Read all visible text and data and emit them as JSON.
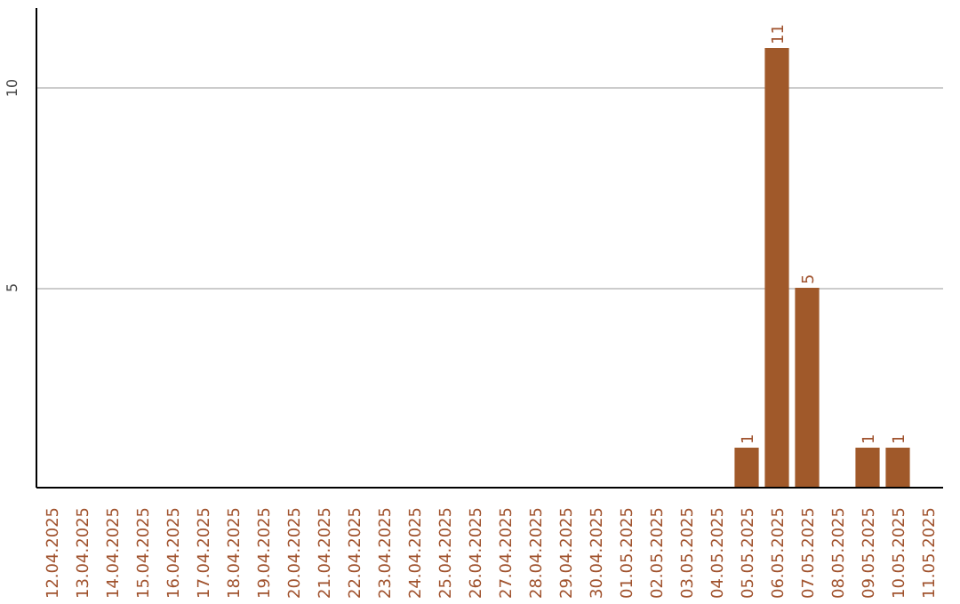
{
  "chart_data": {
    "type": "bar",
    "categories": [
      "12.04.2025",
      "13.04.2025",
      "14.04.2025",
      "15.04.2025",
      "16.04.2025",
      "17.04.2025",
      "18.04.2025",
      "19.04.2025",
      "20.04.2025",
      "21.04.2025",
      "22.04.2025",
      "23.04.2025",
      "24.04.2025",
      "25.04.2025",
      "26.04.2025",
      "27.04.2025",
      "28.04.2025",
      "29.04.2025",
      "30.04.2025",
      "01.05.2025",
      "02.05.2025",
      "03.05.2025",
      "04.05.2025",
      "05.05.2025",
      "06.05.2025",
      "07.05.2025",
      "08.05.2025",
      "09.05.2025",
      "10.05.2025",
      "11.05.2025"
    ],
    "values": [
      0,
      0,
      0,
      0,
      0,
      0,
      0,
      0,
      0,
      0,
      0,
      0,
      0,
      0,
      0,
      0,
      0,
      0,
      0,
      0,
      0,
      0,
      0,
      1,
      11,
      5,
      0,
      1,
      1,
      0
    ],
    "value_labels": [
      null,
      null,
      null,
      null,
      null,
      null,
      null,
      null,
      null,
      null,
      null,
      null,
      null,
      null,
      null,
      null,
      null,
      null,
      null,
      null,
      null,
      null,
      null,
      "1",
      "11",
      "5",
      null,
      "1",
      "1",
      null
    ],
    "color": "#a0592a",
    "ylim": [
      0,
      12
    ],
    "yticks": [
      5,
      10
    ],
    "grid": "y"
  }
}
